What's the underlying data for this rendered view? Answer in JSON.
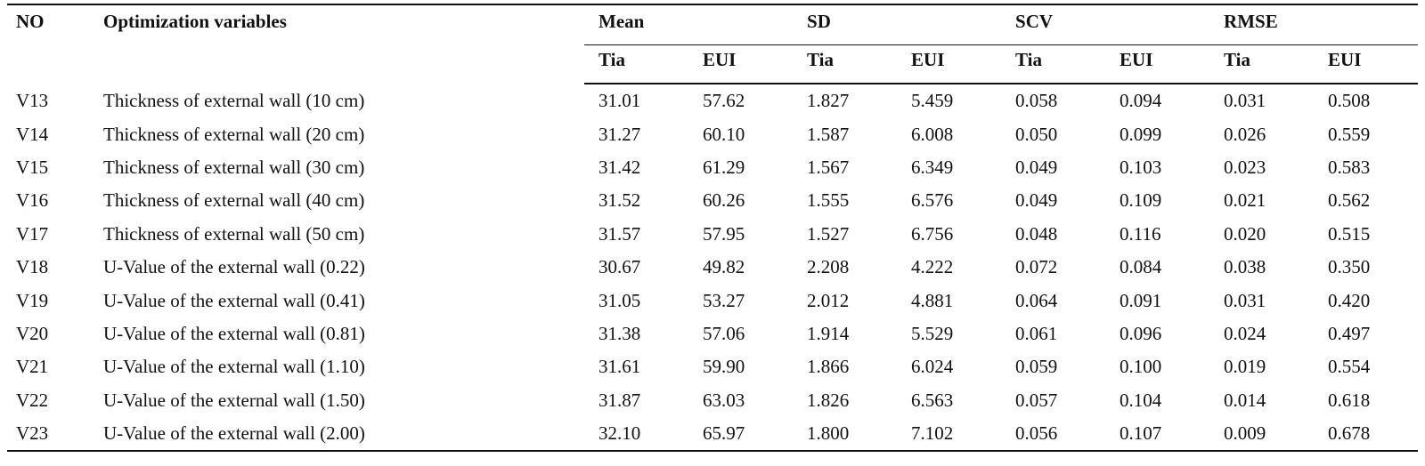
{
  "table": {
    "headers": {
      "no": "NO",
      "variables": "Optimization variables",
      "groups": [
        "Mean",
        "SD",
        "SCV",
        "RMSE"
      ],
      "sub": [
        "Tia",
        "EUI",
        "Tia",
        "EUI",
        "Tia",
        "EUI",
        "Tia",
        "EUI"
      ]
    },
    "rows": [
      [
        "V13",
        "Thickness of external wall (10 cm)",
        "31.01",
        "57.62",
        "1.827",
        "5.459",
        "0.058",
        "0.094",
        "0.031",
        "0.508"
      ],
      [
        "V14",
        "Thickness of external wall (20 cm)",
        "31.27",
        "60.10",
        "1.587",
        "6.008",
        "0.050",
        "0.099",
        "0.026",
        "0.559"
      ],
      [
        "V15",
        "Thickness of external wall (30 cm)",
        "31.42",
        "61.29",
        "1.567",
        "6.349",
        "0.049",
        "0.103",
        "0.023",
        "0.583"
      ],
      [
        "V16",
        "Thickness of external wall (40 cm)",
        "31.52",
        "60.26",
        "1.555",
        "6.576",
        "0.049",
        "0.109",
        "0.021",
        "0.562"
      ],
      [
        "V17",
        "Thickness of external wall (50 cm)",
        "31.57",
        "57.95",
        "1.527",
        "6.756",
        "0.048",
        "0.116",
        "0.020",
        "0.515"
      ],
      [
        "V18",
        "U-Value of the external wall (0.22)",
        "30.67",
        "49.82",
        "2.208",
        "4.222",
        "0.072",
        "0.084",
        "0.038",
        "0.350"
      ],
      [
        "V19",
        "U-Value of the external wall (0.41)",
        "31.05",
        "53.27",
        "2.012",
        "4.881",
        "0.064",
        "0.091",
        "0.031",
        "0.420"
      ],
      [
        "V20",
        "U-Value of the external wall (0.81)",
        "31.38",
        "57.06",
        "1.914",
        "5.529",
        "0.061",
        "0.096",
        "0.024",
        "0.497"
      ],
      [
        "V21",
        "U-Value of the external wall (1.10)",
        "31.61",
        "59.90",
        "1.866",
        "6.024",
        "0.059",
        "0.100",
        "0.019",
        "0.554"
      ],
      [
        "V22",
        "U-Value of the external wall (1.50)",
        "31.87",
        "63.03",
        "1.826",
        "6.563",
        "0.057",
        "0.104",
        "0.014",
        "0.618"
      ],
      [
        "V23",
        "U-Value of the external wall (2.00)",
        "32.10",
        "65.97",
        "1.800",
        "7.102",
        "0.056",
        "0.107",
        "0.009",
        "0.678"
      ]
    ]
  }
}
